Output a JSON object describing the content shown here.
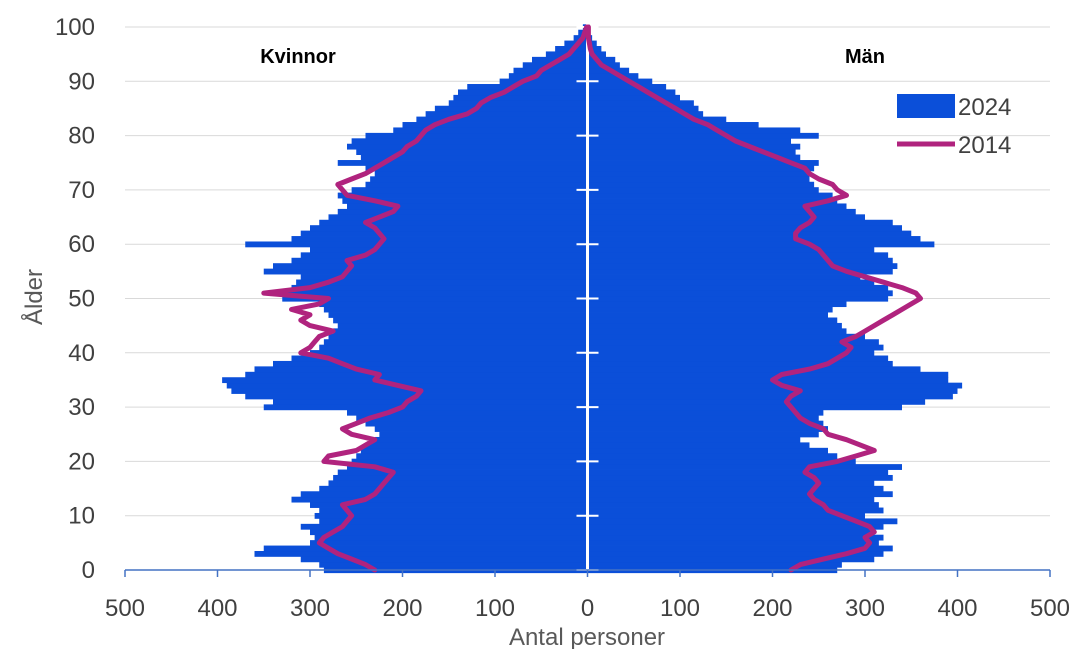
{
  "chart_data": {
    "type": "population-pyramid",
    "xlabel": "Antal personer",
    "ylabel": "Ålder",
    "xlim": [
      -500,
      500
    ],
    "ylim": [
      0,
      100
    ],
    "x_ticks": [
      -500,
      -400,
      -300,
      -200,
      -100,
      0,
      100,
      200,
      300,
      400,
      500
    ],
    "x_tick_labels": [
      "500",
      "400",
      "300",
      "200",
      "100",
      "0",
      "100",
      "200",
      "300",
      "400",
      "500"
    ],
    "y_ticks": [
      0,
      10,
      20,
      30,
      40,
      50,
      60,
      70,
      80,
      90,
      100
    ],
    "y_tick_labels": [
      "0",
      "10",
      "20",
      "30",
      "40",
      "50",
      "60",
      "70",
      "80",
      "90",
      "100"
    ],
    "grid": "horizontal",
    "legend": {
      "placement": "top-right",
      "entries": [
        "2024",
        "2014"
      ]
    },
    "side_labels": {
      "left": "Kvinnor",
      "right": "Män"
    },
    "colors": {
      "bars_2024": "#0b4fd9",
      "line_2014": "#b0237e",
      "grid": "#d9d9d9",
      "axis": "#4472c4",
      "text": "#404040"
    },
    "series": [
      {
        "name": "2024",
        "kind": "bars",
        "ages": [
          0,
          1,
          2,
          3,
          4,
          5,
          6,
          7,
          8,
          9,
          10,
          11,
          12,
          13,
          14,
          15,
          16,
          17,
          18,
          19,
          20,
          21,
          22,
          23,
          24,
          25,
          26,
          27,
          28,
          29,
          30,
          31,
          32,
          33,
          34,
          35,
          36,
          37,
          38,
          39,
          40,
          41,
          42,
          43,
          44,
          45,
          46,
          47,
          48,
          49,
          50,
          51,
          52,
          53,
          54,
          55,
          56,
          57,
          58,
          59,
          60,
          61,
          62,
          63,
          64,
          65,
          66,
          67,
          68,
          69,
          70,
          71,
          72,
          73,
          74,
          75,
          76,
          77,
          78,
          79,
          80,
          81,
          82,
          83,
          84,
          85,
          86,
          87,
          88,
          89,
          90,
          91,
          92,
          93,
          94,
          95,
          96,
          97,
          98,
          99,
          100
        ],
        "female": [
          285,
          290,
          310,
          360,
          350,
          300,
          295,
          300,
          310,
          290,
          295,
          290,
          300,
          320,
          310,
          290,
          280,
          275,
          270,
          260,
          255,
          250,
          245,
          240,
          230,
          225,
          230,
          240,
          250,
          260,
          350,
          340,
          370,
          385,
          390,
          395,
          370,
          360,
          340,
          320,
          300,
          290,
          285,
          280,
          275,
          270,
          275,
          280,
          285,
          290,
          330,
          325,
          320,
          315,
          310,
          350,
          340,
          320,
          310,
          300,
          370,
          320,
          310,
          300,
          290,
          280,
          270,
          260,
          265,
          270,
          255,
          240,
          235,
          230,
          240,
          270,
          245,
          250,
          260,
          255,
          240,
          210,
          200,
          185,
          175,
          165,
          150,
          145,
          140,
          130,
          95,
          85,
          80,
          70,
          60,
          45,
          35,
          25,
          15,
          10,
          5
        ],
        "male": [
          270,
          275,
          310,
          320,
          330,
          315,
          320,
          310,
          320,
          335,
          300,
          320,
          315,
          310,
          330,
          320,
          310,
          330,
          325,
          340,
          290,
          270,
          260,
          240,
          230,
          250,
          260,
          255,
          250,
          255,
          340,
          365,
          395,
          400,
          405,
          390,
          390,
          360,
          330,
          325,
          310,
          320,
          315,
          300,
          280,
          275,
          270,
          260,
          265,
          280,
          325,
          330,
          325,
          310,
          295,
          330,
          335,
          330,
          325,
          310,
          375,
          360,
          350,
          340,
          330,
          300,
          290,
          280,
          270,
          265,
          250,
          245,
          240,
          240,
          245,
          250,
          230,
          225,
          230,
          220,
          250,
          230,
          185,
          150,
          125,
          120,
          115,
          100,
          95,
          85,
          70,
          55,
          45,
          35,
          30,
          20,
          15,
          10,
          5,
          3,
          2
        ]
      },
      {
        "name": "2014",
        "kind": "line",
        "ages": [
          0,
          1,
          2,
          3,
          4,
          5,
          6,
          7,
          8,
          9,
          10,
          11,
          12,
          13,
          14,
          15,
          16,
          17,
          18,
          19,
          20,
          21,
          22,
          23,
          24,
          25,
          26,
          27,
          28,
          29,
          30,
          31,
          32,
          33,
          34,
          35,
          36,
          37,
          38,
          39,
          40,
          41,
          42,
          43,
          44,
          45,
          46,
          47,
          48,
          49,
          50,
          51,
          52,
          53,
          54,
          55,
          56,
          57,
          58,
          59,
          60,
          61,
          62,
          63,
          64,
          65,
          66,
          67,
          68,
          69,
          70,
          71,
          72,
          73,
          74,
          75,
          76,
          77,
          78,
          79,
          80,
          81,
          82,
          83,
          84,
          85,
          86,
          87,
          88,
          89,
          90,
          91,
          92,
          93,
          94,
          95,
          96,
          97,
          98,
          99,
          100
        ],
        "female": [
          230,
          240,
          255,
          270,
          280,
          290,
          285,
          275,
          265,
          260,
          255,
          260,
          265,
          240,
          230,
          225,
          220,
          215,
          210,
          230,
          285,
          280,
          250,
          240,
          230,
          255,
          265,
          250,
          235,
          215,
          200,
          195,
          185,
          180,
          205,
          230,
          225,
          250,
          265,
          280,
          310,
          300,
          295,
          290,
          275,
          300,
          310,
          300,
          320,
          290,
          280,
          350,
          300,
          280,
          265,
          260,
          255,
          260,
          240,
          230,
          225,
          220,
          225,
          230,
          240,
          225,
          210,
          205,
          230,
          260,
          265,
          270,
          255,
          240,
          230,
          220,
          210,
          200,
          195,
          185,
          180,
          175,
          165,
          150,
          130,
          120,
          115,
          105,
          90,
          80,
          70,
          55,
          50,
          40,
          30,
          20,
          15,
          10,
          5,
          3,
          1
        ],
        "male": [
          220,
          230,
          255,
          280,
          300,
          305,
          300,
          310,
          305,
          290,
          275,
          260,
          255,
          245,
          240,
          245,
          250,
          245,
          235,
          240,
          270,
          290,
          310,
          295,
          280,
          260,
          255,
          240,
          230,
          225,
          220,
          215,
          220,
          230,
          210,
          200,
          210,
          240,
          260,
          270,
          280,
          285,
          275,
          290,
          300,
          310,
          320,
          330,
          340,
          350,
          360,
          355,
          340,
          320,
          300,
          280,
          265,
          260,
          255,
          250,
          240,
          225,
          225,
          230,
          240,
          245,
          240,
          235,
          260,
          280,
          270,
          265,
          250,
          240,
          235,
          220,
          205,
          190,
          175,
          160,
          150,
          140,
          130,
          115,
          105,
          95,
          85,
          75,
          65,
          55,
          45,
          35,
          25,
          15,
          10,
          5,
          3,
          2,
          1,
          1,
          1
        ]
      }
    ]
  }
}
